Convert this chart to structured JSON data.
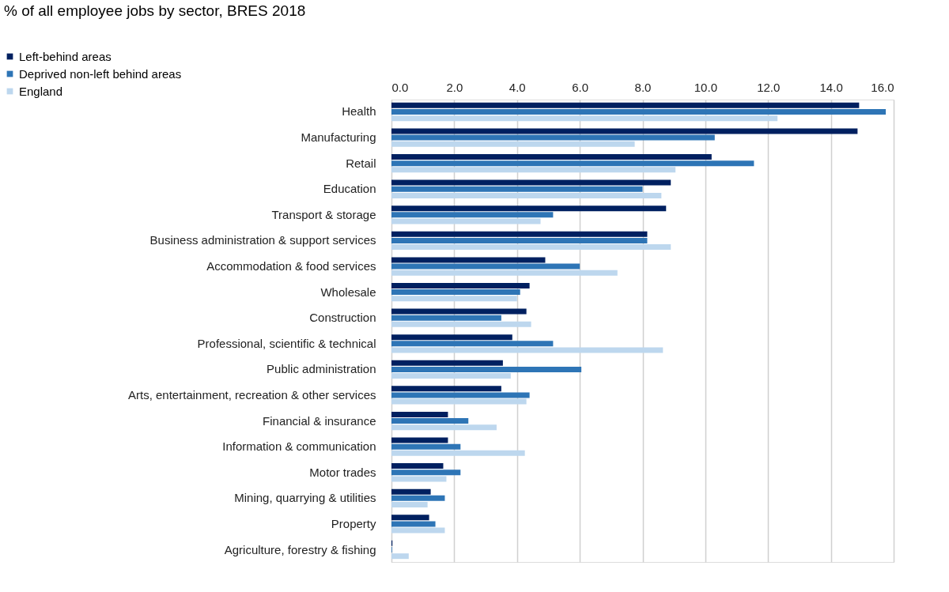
{
  "chart_data": {
    "type": "bar",
    "orientation": "horizontal",
    "title": "% of all employee jobs by sector, BRES 2018",
    "categories": [
      "Health",
      "Manufacturing",
      "Retail",
      "Education",
      "Transport & storage",
      "Business administration & support services",
      "Accommodation & food services",
      "Wholesale",
      "Construction",
      "Professional, scientific & technical",
      "Public administration",
      "Arts, entertainment, recreation & other services",
      "Financial & insurance",
      "Information & communication",
      "Motor trades",
      "Mining, quarrying & utilities",
      "Property",
      "Agriculture, forestry & fishing"
    ],
    "series": [
      {
        "name": "Left-behind areas",
        "color": "#002060",
        "values": [
          14.9,
          14.85,
          10.2,
          8.9,
          8.75,
          8.15,
          4.9,
          4.4,
          4.3,
          3.85,
          3.55,
          3.5,
          1.8,
          1.8,
          1.65,
          1.25,
          1.2,
          0.03
        ]
      },
      {
        "name": "Deprived non-left behind areas",
        "color": "#2e75b6",
        "values": [
          15.75,
          10.3,
          11.55,
          8.0,
          5.15,
          8.15,
          6.0,
          4.1,
          3.5,
          5.15,
          6.05,
          4.4,
          2.45,
          2.2,
          2.2,
          1.7,
          1.4,
          0.02
        ]
      },
      {
        "name": "England",
        "color": "#bdd7ee",
        "values": [
          12.3,
          7.75,
          9.05,
          8.6,
          4.75,
          8.9,
          7.2,
          4.0,
          4.45,
          8.65,
          3.8,
          4.3,
          3.35,
          4.25,
          1.75,
          1.15,
          1.7,
          0.55
        ]
      }
    ],
    "xlim": [
      0,
      16
    ],
    "xticks": [
      {
        "value": 0,
        "label": "0.0"
      },
      {
        "value": 2,
        "label": "2.0"
      },
      {
        "value": 4,
        "label": "4.0"
      },
      {
        "value": 6,
        "label": "6.0"
      },
      {
        "value": 8,
        "label": "8.0"
      },
      {
        "value": 10,
        "label": "10.0"
      },
      {
        "value": 12,
        "label": "12.0"
      },
      {
        "value": 14,
        "label": "14.0"
      },
      {
        "value": 16,
        "label": "16.0"
      }
    ],
    "grid": "x",
    "legend": "top left"
  }
}
